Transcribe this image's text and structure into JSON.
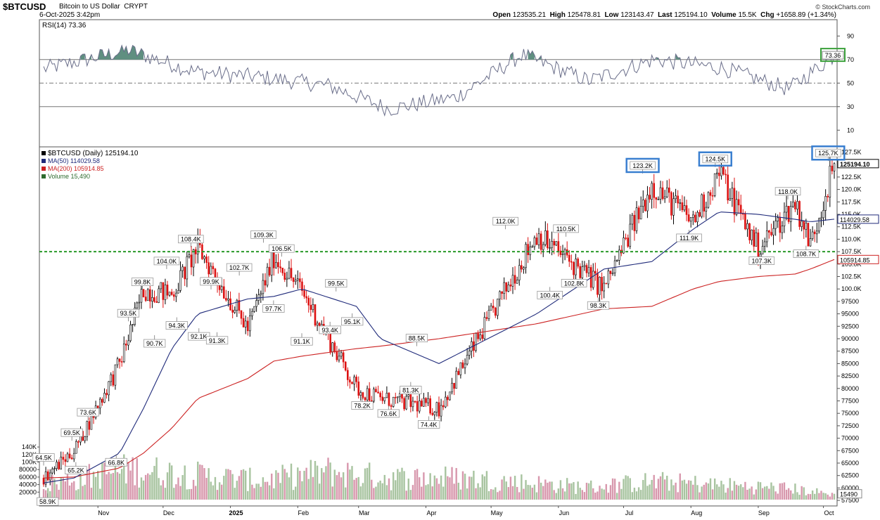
{
  "header": {
    "symbol": "$BTCUSD",
    "name": "Bitcoin to US Dollar",
    "exchange": "CRYPT",
    "timestamp": "6-Oct-2025 3:42pm",
    "brand": "© StockCharts.com",
    "open_label": "Open",
    "open": "123535.21",
    "high_label": "High",
    "high": "125478.81",
    "low_label": "Low",
    "low": "123143.47",
    "last_label": "Last",
    "last": "125194.10",
    "volume_label": "Volume",
    "volume": "15.5K",
    "chg_label": "Chg",
    "chg": "+1658.89 (+1.34%)"
  },
  "rsi_panel": {
    "label": "RSI(14) 73.36",
    "value": 73.36,
    "value_tag": "73.36",
    "ticks": [
      "90",
      "70",
      "50",
      "30",
      "10"
    ],
    "levels": [
      70,
      50,
      30
    ]
  },
  "price_panel": {
    "legend": [
      {
        "text": "$BTCUSD (Daily) 125194.10",
        "color": "#000000"
      },
      {
        "text": "MA(50) 114029.58",
        "color": "#1f2a7a"
      },
      {
        "text": "MA(200) 105914.85",
        "color": "#cc2222"
      },
      {
        "text": "Volume 15,490",
        "color": "#2e6b2e"
      }
    ],
    "price_ticks": [
      "127.5K",
      "125.0K",
      "122.5K",
      "120.0K",
      "117.5K",
      "115.0K",
      "112.5K",
      "110.0K",
      "107.5K",
      "105.0K",
      "102.5K",
      "100.0K",
      "97500",
      "95000",
      "92500",
      "90000",
      "87500",
      "85000",
      "82500",
      "80000",
      "77500",
      "75000",
      "72500",
      "70000",
      "67500",
      "65000",
      "62500",
      "60000",
      "57500"
    ],
    "last_tag": "125194.10",
    "ma50_tag": "114029.58",
    "ma200_tag": "105914.85",
    "volume_tag": "15490",
    "volume_ticks": [
      "140K",
      "120K",
      "100K",
      "80000",
      "60000",
      "40000",
      "20000"
    ],
    "support_level": 107500,
    "callouts": [
      {
        "text": "64.5K",
        "anchor": "Oct 2024"
      },
      {
        "text": "58.9K",
        "anchor": "Oct 2024"
      },
      {
        "text": "69.5K",
        "anchor": "Oct 2024"
      },
      {
        "text": "65.2K",
        "anchor": "Oct 2024"
      },
      {
        "text": "73.6K",
        "anchor": "Oct 2024"
      },
      {
        "text": "66.8K",
        "anchor": "Nov 2024"
      },
      {
        "text": "93.5K",
        "anchor": "Nov 2024"
      },
      {
        "text": "99.8K",
        "anchor": "Nov 2024"
      },
      {
        "text": "90.7K",
        "anchor": "Nov 2024"
      },
      {
        "text": "104.0K",
        "anchor": "Dec 2024"
      },
      {
        "text": "94.3K",
        "anchor": "Dec 2024"
      },
      {
        "text": "108.4K",
        "anchor": "Dec 2024"
      },
      {
        "text": "92.1K",
        "anchor": "Dec 2024"
      },
      {
        "text": "99.9K",
        "anchor": "Dec 2024"
      },
      {
        "text": "91.3K",
        "anchor": "Jan 2025"
      },
      {
        "text": "102.7K",
        "anchor": "Jan 2025"
      },
      {
        "text": "109.3K",
        "anchor": "Jan 2025"
      },
      {
        "text": "97.7K",
        "anchor": "Jan 2025"
      },
      {
        "text": "106.5K",
        "anchor": "Jan 2025"
      },
      {
        "text": "91.1K",
        "anchor": "Feb 2025"
      },
      {
        "text": "99.5K",
        "anchor": "Feb 2025"
      },
      {
        "text": "93.4K",
        "anchor": "Feb 2025"
      },
      {
        "text": "95.1K",
        "anchor": "Feb 2025"
      },
      {
        "text": "78.2K",
        "anchor": "Feb 2025"
      },
      {
        "text": "76.6K",
        "anchor": "Mar 2025"
      },
      {
        "text": "88.5K",
        "anchor": "Mar 2025"
      },
      {
        "text": "81.3K",
        "anchor": "Mar 2025"
      },
      {
        "text": "74.4K",
        "anchor": "Apr 2025"
      },
      {
        "text": "112.0K",
        "anchor": "May 2025"
      },
      {
        "text": "110.5K",
        "anchor": "Jun 2025"
      },
      {
        "text": "100.4K",
        "anchor": "Jun 2025"
      },
      {
        "text": "102.8K",
        "anchor": "Jun 2025"
      },
      {
        "text": "98.3K",
        "anchor": "Jun 2025"
      },
      {
        "text": "123.2K",
        "anchor": "Jul 2025",
        "highlight": true
      },
      {
        "text": "111.9K",
        "anchor": "Aug 2025"
      },
      {
        "text": "124.5K",
        "anchor": "Aug 2025",
        "highlight": true
      },
      {
        "text": "107.3K",
        "anchor": "Sep 2025"
      },
      {
        "text": "118.0K",
        "anchor": "Sep 2025"
      },
      {
        "text": "108.7K",
        "anchor": "Sep 2025"
      },
      {
        "text": "125.7K",
        "anchor": "Oct 2025",
        "highlight": true
      }
    ],
    "x_labels": [
      "Nov",
      "Dec",
      "2025",
      "Feb",
      "Mar",
      "Apr",
      "May",
      "Jun",
      "Jul",
      "Aug",
      "Sep",
      "Oct"
    ]
  },
  "colors": {
    "up": "#000000",
    "down": "#dd1111",
    "ma50": "#1f2a7a",
    "ma200": "#cc2222",
    "rsi_line": "#6a6e8a",
    "rsi_fill": "#5f8f80",
    "vol_up": "#a8c4a0",
    "vol_down": "#d898ad",
    "support": "#2a9a2a",
    "highlight": "#3a7fd0",
    "rsi_highlight": "#3aa03a"
  },
  "chart_data": [
    {
      "type": "line",
      "title": "RSI(14) 73.36",
      "ylim": [
        0,
        100
      ],
      "x": [
        "2024-10",
        "2024-11",
        "2024-12",
        "2025-01",
        "2025-02",
        "2025-03",
        "2025-04",
        "2025-05",
        "2025-06",
        "2025-07",
        "2025-08",
        "2025-09",
        "2025-10-06"
      ],
      "series": [
        {
          "name": "RSI(14)",
          "values": [
            62,
            78,
            60,
            55,
            48,
            28,
            38,
            74,
            52,
            70,
            63,
            45,
            73.36
          ]
        }
      ]
    },
    {
      "type": "line",
      "title": "$BTCUSD (Daily) 125194.10",
      "x": [
        "2024-10-07",
        "2024-10-21",
        "2024-11-11",
        "2024-11-22",
        "2024-12-05",
        "2024-12-17",
        "2025-01-09",
        "2025-01-21",
        "2025-02-03",
        "2025-02-28",
        "2025-03-11",
        "2025-04-07",
        "2025-05-22",
        "2025-06-22",
        "2025-07-14",
        "2025-08-02",
        "2025-08-14",
        "2025-09-01",
        "2025-09-18",
        "2025-09-25",
        "2025-10-06"
      ],
      "series": [
        {
          "name": "$BTCUSD",
          "values": [
            62000,
            67500,
            85000,
            99800,
            99000,
            108400,
            92000,
            106500,
            99500,
            80000,
            78000,
            76000,
            111000,
            100000,
            121000,
            113500,
            123500,
            108000,
            117500,
            109000,
            125194.1
          ]
        },
        {
          "name": "MA(50)",
          "values": [
            61000,
            62000,
            67000,
            76000,
            88000,
            95000,
            98000,
            98500,
            100000,
            96500,
            90000,
            85000,
            95000,
            104000,
            105500,
            112000,
            115500,
            115000,
            114000,
            113500,
            114029.58
          ]
        },
        {
          "name": "MA(200)",
          "values": [
            62000,
            62200,
            64000,
            67000,
            72000,
            78000,
            82000,
            85500,
            86500,
            88000,
            88500,
            90000,
            93000,
            96000,
            96500,
            100000,
            101500,
            102500,
            103000,
            104000,
            105914.85
          ]
        }
      ],
      "support_line": 107500
    },
    {
      "type": "bar",
      "title": "Volume 15,490",
      "ylim": [
        0,
        160000
      ],
      "categories": [
        "Oct",
        "Nov",
        "Dec",
        "Jan",
        "Feb",
        "Mar",
        "Apr",
        "May",
        "Jun",
        "Jul",
        "Aug",
        "Sep",
        "Oct-06"
      ],
      "series": [
        {
          "name": "Volume",
          "values": [
            45000,
            92000,
            74000,
            58000,
            85000,
            66000,
            66000,
            52000,
            38000,
            55000,
            44000,
            34000,
            15490
          ]
        }
      ]
    }
  ]
}
